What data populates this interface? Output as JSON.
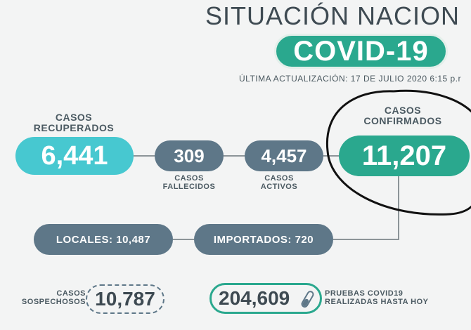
{
  "header": {
    "title": "SITUACIÓN NACION",
    "covid_label": "COVID-19",
    "update_text": "ÚLTIMA ACTUALIZACIÓN: 17 DE JULIO 2020 6:15 p.r"
  },
  "stats": {
    "recovered": {
      "label": "CASOS\nRECUPERADOS",
      "value": "6,441"
    },
    "deaths": {
      "label": "CASOS\nFALLECIDOS",
      "value": "309"
    },
    "active": {
      "label": "CASOS\nACTIVOS",
      "value": "4,457"
    },
    "confirmed": {
      "label": "CASOS\nCONFIRMADOS",
      "value": "11,207"
    },
    "local": {
      "text": "LOCALES: 10,487"
    },
    "imported": {
      "text": "IMPORTADOS: 720"
    },
    "suspected": {
      "label": "CASOS\nSOSPECHOSOS",
      "value": "10,787"
    },
    "tests": {
      "value": "204,609",
      "label": "PRUEBAS COVID19\nREALIZADAS HASTA HOY"
    }
  },
  "colors": {
    "teal": "#2aa88e",
    "cyan": "#47c8d0",
    "slate": "#5e7788",
    "text": "#3e4a52"
  },
  "icons": {
    "test_icon": "test-tube-icon"
  }
}
